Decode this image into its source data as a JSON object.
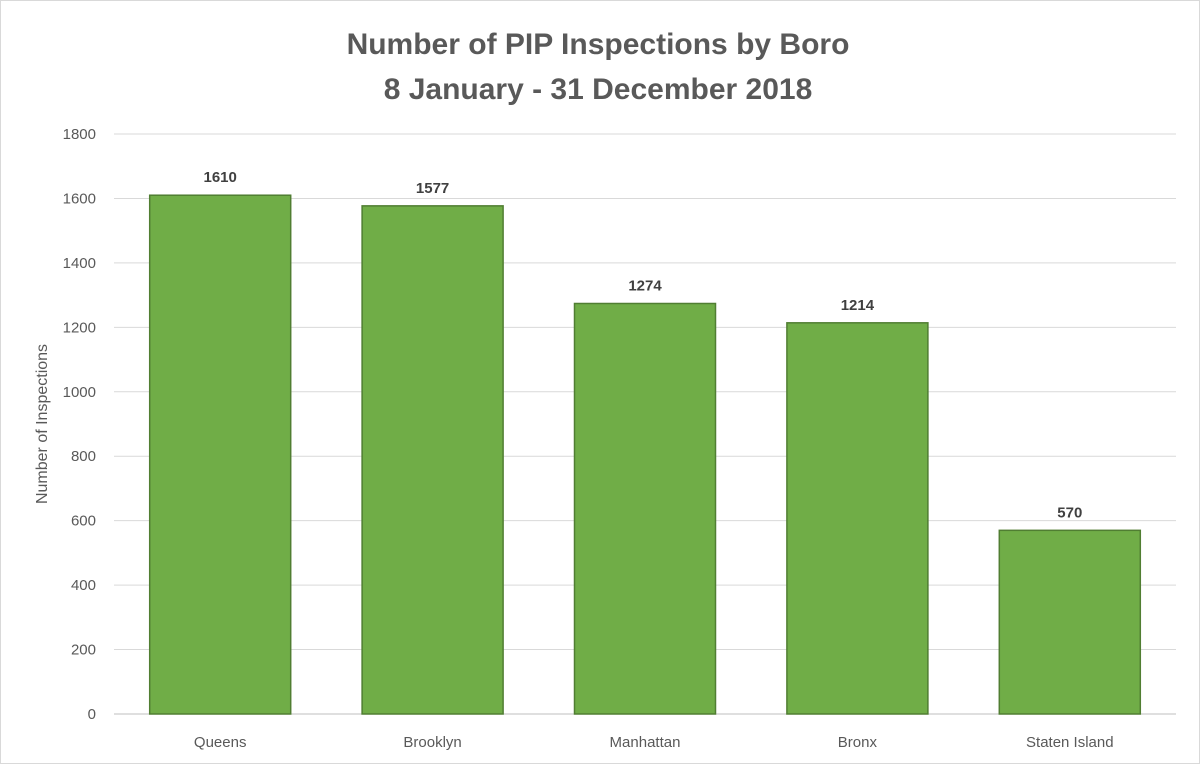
{
  "chart_data": {
    "type": "bar",
    "title": "Number of PIP Inspections by Boro",
    "subtitle": "8 January - 31 December 2018",
    "xlabel": "",
    "ylabel": "Number of Inspections",
    "categories": [
      "Queens",
      "Brooklyn",
      "Manhattan",
      "Bronx",
      "Staten Island"
    ],
    "values": [
      1610,
      1577,
      1274,
      1214,
      570
    ],
    "ylim": [
      0,
      1800
    ],
    "yticks": [
      0,
      200,
      400,
      600,
      800,
      1000,
      1200,
      1400,
      1600,
      1800
    ],
    "grid": true,
    "legend": "none",
    "colors": {
      "bar_fill": "#70ad47",
      "bar_stroke": "#507e32"
    }
  }
}
